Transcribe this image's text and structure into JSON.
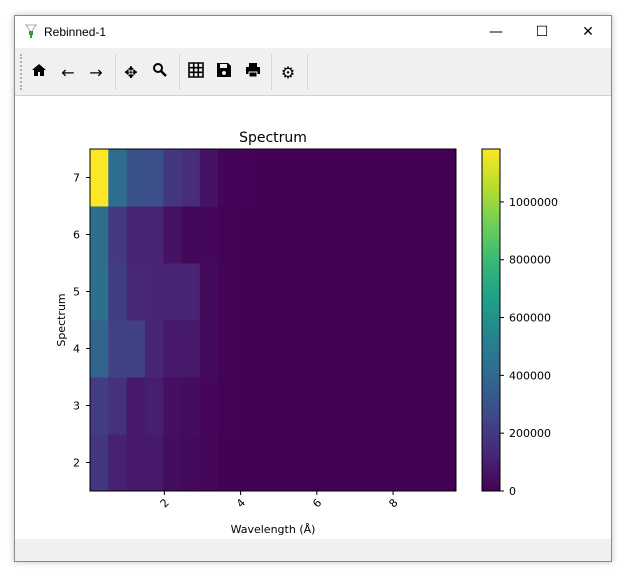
{
  "window": {
    "title": "Rebinned-1",
    "minimize": "—",
    "maximize": "☐",
    "close": "✕"
  },
  "toolbar": {
    "home": "home",
    "back": "back",
    "forward": "forward",
    "pan": "pan",
    "zoom": "zoom",
    "grid": "grid",
    "save": "save",
    "print": "print",
    "settings": "settings"
  },
  "chart_data": {
    "type": "heatmap",
    "title": "Spectrum",
    "xlabel": "Wavelength (Å)",
    "ylabel": "Spectrum",
    "xlim": [
      0.05,
      9.65
    ],
    "ylim": [
      1.5,
      7.5
    ],
    "x_ticks": [
      2,
      4,
      6,
      8
    ],
    "y_ticks": [
      2,
      3,
      4,
      5,
      6,
      7
    ],
    "x_bin_width": 0.48,
    "rows": [
      2,
      3,
      4,
      5,
      6,
      7
    ],
    "values": [
      [
        190000,
        110000,
        80000,
        80000,
        40000,
        30000,
        20000,
        5000,
        5000,
        5000,
        5000,
        5000,
        5000,
        5000,
        5000,
        5000,
        5000,
        5000,
        5000,
        5000
      ],
      [
        210000,
        170000,
        80000,
        100000,
        50000,
        40000,
        20000,
        8000,
        5000,
        5000,
        5000,
        5000,
        5000,
        5000,
        5000,
        5000,
        5000,
        5000,
        5000,
        5000
      ],
      [
        380000,
        230000,
        230000,
        120000,
        80000,
        80000,
        30000,
        8000,
        5000,
        5000,
        5000,
        5000,
        5000,
        5000,
        5000,
        5000,
        5000,
        5000,
        5000,
        5000
      ],
      [
        430000,
        220000,
        130000,
        120000,
        120000,
        120000,
        30000,
        8000,
        5000,
        5000,
        5000,
        5000,
        5000,
        5000,
        5000,
        5000,
        5000,
        5000,
        5000,
        5000
      ],
      [
        430000,
        200000,
        120000,
        120000,
        60000,
        20000,
        20000,
        8000,
        5000,
        5000,
        5000,
        5000,
        5000,
        5000,
        5000,
        5000,
        5000,
        5000,
        5000,
        5000
      ],
      [
        1180000,
        420000,
        300000,
        290000,
        190000,
        150000,
        60000,
        10000,
        8000,
        5000,
        5000,
        5000,
        5000,
        5000,
        5000,
        5000,
        5000,
        5000,
        5000,
        5000
      ]
    ],
    "colormap": "viridis",
    "colorbar": {
      "min": 0,
      "max": 1183000,
      "ticks": [
        0,
        200000,
        400000,
        600000,
        800000,
        1000000
      ],
      "tick_labels": [
        "0",
        "200000",
        "400000",
        "600000",
        "800000",
        "1000000"
      ]
    }
  }
}
